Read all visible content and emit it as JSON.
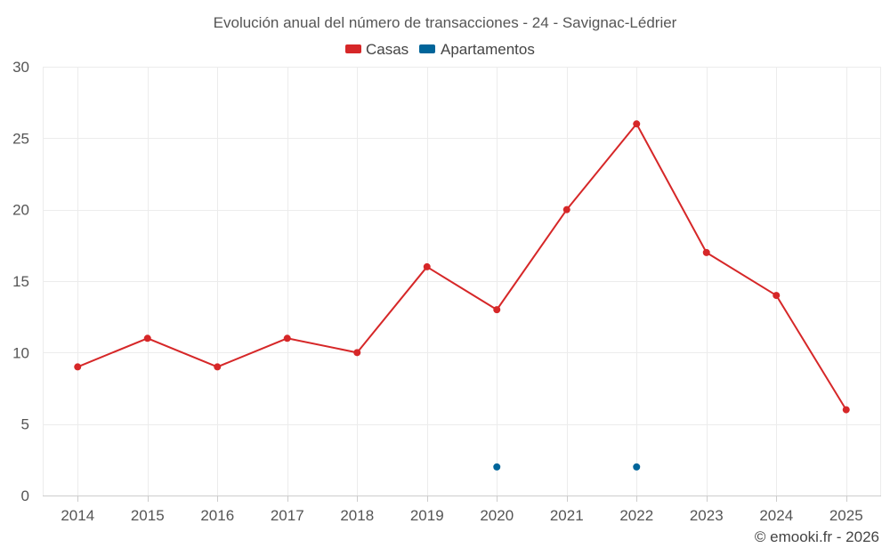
{
  "chart_data": {
    "type": "line",
    "title": "Evolución anual del número de transacciones - 24 - Savignac-Lédrier",
    "categories": [
      "2014",
      "2015",
      "2016",
      "2017",
      "2018",
      "2019",
      "2020",
      "2021",
      "2022",
      "2023",
      "2024",
      "2025"
    ],
    "series": [
      {
        "name": "Casas",
        "color": "#d62728",
        "values": [
          9,
          11,
          9,
          11,
          10,
          16,
          13,
          20,
          26,
          17,
          14,
          6
        ]
      },
      {
        "name": "Apartamentos",
        "color": "#00659a",
        "values": [
          null,
          null,
          null,
          null,
          null,
          null,
          2,
          null,
          2,
          null,
          null,
          null
        ]
      }
    ],
    "ylim": [
      0,
      30
    ],
    "yticks": [
      0,
      5,
      10,
      15,
      20,
      25,
      30
    ],
    "xlabel": "",
    "ylabel": "",
    "grid": true,
    "legend": "top-center"
  },
  "credit": "© emooki.fr - 2026"
}
